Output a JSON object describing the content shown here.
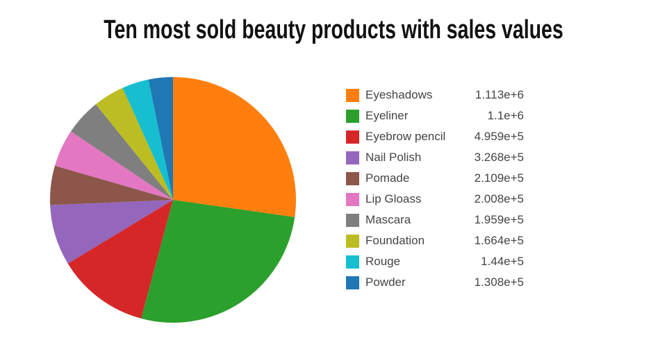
{
  "chart_data": {
    "type": "pie",
    "title": "Ten most sold beauty products with sales values",
    "labels": [
      "Eyeshadows",
      "Eyeliner",
      "Eyebrow pencil",
      "Nail Polish",
      "Pomade",
      "Lip Gloass",
      "Mascara",
      "Foundation",
      "Rouge",
      "Powder"
    ],
    "values": [
      1113000,
      1100000,
      495900,
      326800,
      210900,
      200800,
      195900,
      166400,
      144000,
      130800
    ],
    "value_labels": [
      "1.113e+6",
      "1.1e+6",
      "4.959e+5",
      "3.268e+5",
      "2.109e+5",
      "2.008e+5",
      "1.959e+5",
      "1.664e+5",
      "1.44e+5",
      "1.308e+5"
    ],
    "colors": [
      "#ff7f0e",
      "#2ca02c",
      "#d62728",
      "#9467bd",
      "#8c564b",
      "#e377c2",
      "#7f7f7f",
      "#bcbd22",
      "#17becf",
      "#1f77b4"
    ],
    "start_angle": "top",
    "direction": "clockwise",
    "legend_position": "right",
    "background_color": "#ffffff",
    "title_color": "#111111",
    "legend_text_color": "#444444"
  }
}
